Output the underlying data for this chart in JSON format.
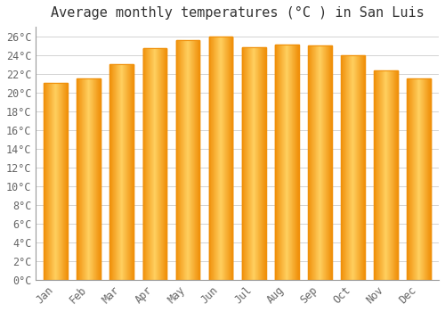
{
  "title": "Average monthly temperatures (°C ) in San Luis",
  "months": [
    "Jan",
    "Feb",
    "Mar",
    "Apr",
    "May",
    "Jun",
    "Jul",
    "Aug",
    "Sep",
    "Oct",
    "Nov",
    "Dec"
  ],
  "values": [
    21.0,
    21.5,
    23.0,
    24.7,
    25.6,
    26.0,
    24.8,
    25.1,
    25.0,
    24.0,
    22.3,
    21.5
  ],
  "bar_color_center": "#FFD060",
  "bar_color_edge": "#F0900A",
  "background_color": "#FFFFFF",
  "plot_bg_color": "#FFFFFF",
  "ylim": [
    0,
    27
  ],
  "ytick_step": 2,
  "title_fontsize": 11,
  "tick_fontsize": 8.5,
  "grid_color": "#CCCCCC",
  "axis_color": "#999999",
  "font_color": "#666666"
}
